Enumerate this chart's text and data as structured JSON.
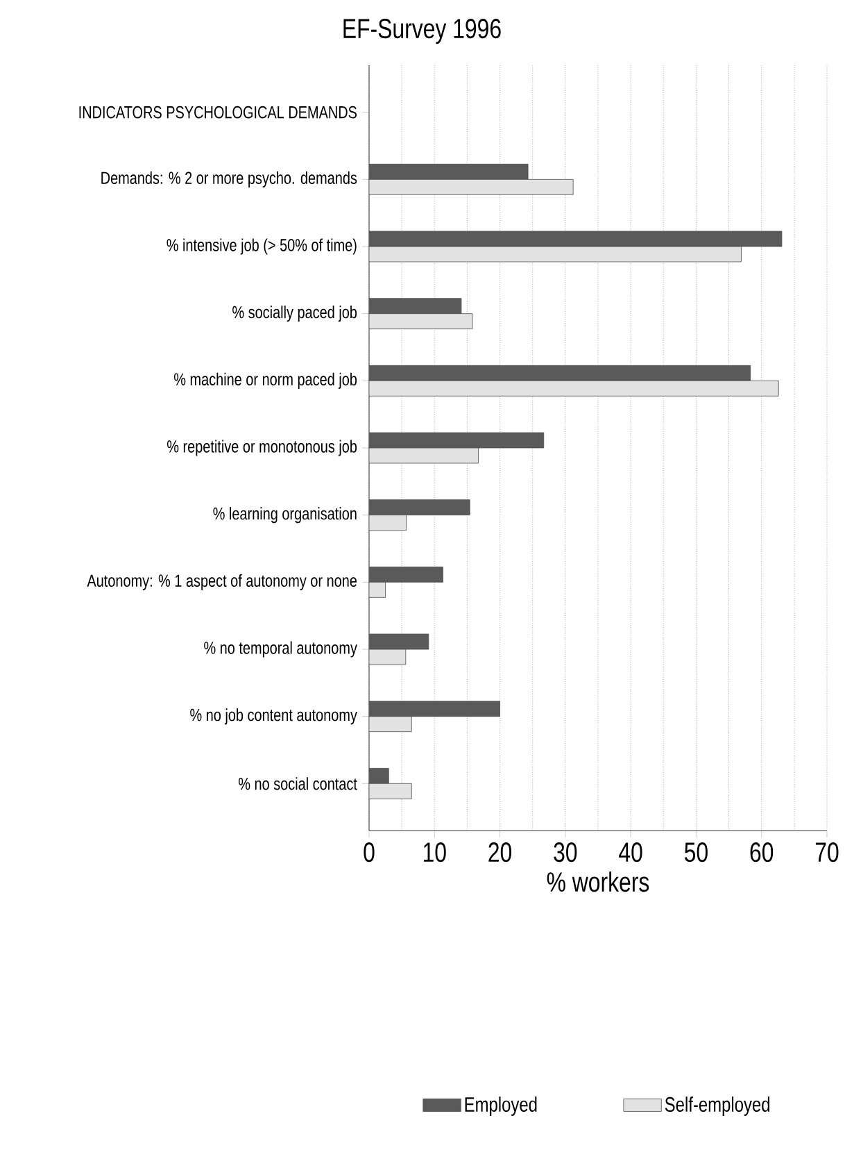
{
  "chart_data": {
    "type": "bar",
    "orientation": "horizontal",
    "title": "EF-Survey 1996",
    "xlabel": "% workers",
    "categories": [
      "INDICATORS PSYCHOLOGICAL DEMANDS",
      "Demands: % 2 or more psycho. demands",
      "% intensive job (> 50% of time)",
      "% socially paced job",
      "% machine or norm paced job",
      "% repetitive or monotonous job",
      "% learning organisation",
      "Autonomy: % 1 aspect of autonomy or none",
      "% no temporal autonomy",
      "% no job content autonomy",
      "% no social contact"
    ],
    "series": [
      {
        "name": "Employed",
        "color": "#5a5a5a",
        "values": [
          null,
          24.3,
          63.1,
          14.1,
          58.3,
          26.7,
          15.4,
          11.3,
          9.1,
          20.0,
          3.0
        ]
      },
      {
        "name": "Self-employed",
        "color": "#e2e2e2",
        "values": [
          null,
          31.2,
          56.9,
          15.8,
          62.6,
          16.7,
          5.7,
          2.5,
          5.6,
          6.5,
          6.5
        ]
      }
    ],
    "xlim": [
      0,
      70
    ],
    "xticks": [
      0,
      10,
      20,
      30,
      40,
      50,
      60,
      70
    ],
    "grid": "x",
    "legend": "bottom"
  }
}
